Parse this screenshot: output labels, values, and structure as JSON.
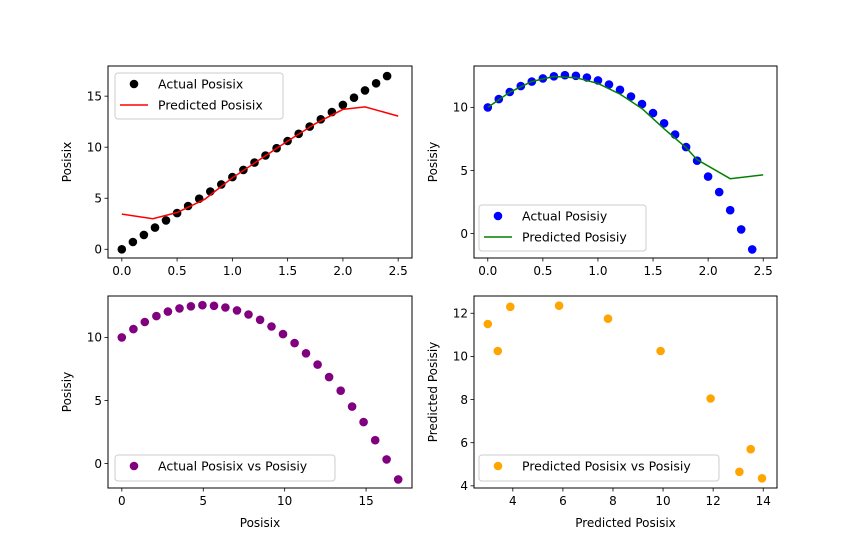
{
  "chart_data": [
    {
      "type": "scatter",
      "xlim": [
        -0.125,
        2.625
      ],
      "ylim": [
        -0.855,
        17.955
      ],
      "xticks": [
        0,
        0.5,
        1,
        1.5,
        2,
        2.5
      ],
      "xtick_labels": [
        "0.0",
        "0.5",
        "1.0",
        "1.5",
        "2.0",
        "2.5"
      ],
      "yticks": [
        0,
        5,
        10,
        15
      ],
      "ytick_labels": [
        "0",
        "5",
        "10",
        "15"
      ],
      "xlabel": "",
      "ylabel": "Posisix",
      "legend": "upper-left",
      "series": [
        {
          "name": "Actual Posisix",
          "kind": "scatter",
          "color": "#000000",
          "x": [
            0,
            0.1,
            0.2,
            0.3,
            0.4,
            0.5,
            0.6,
            0.7,
            0.8,
            0.9,
            1.0,
            1.1,
            1.2,
            1.3,
            1.4,
            1.5,
            1.6,
            1.7,
            1.8,
            1.9,
            2.0,
            2.1,
            2.2,
            2.3,
            2.4
          ],
          "y": [
            0,
            0.71,
            1.41,
            2.12,
            2.83,
            3.54,
            4.24,
            4.95,
            5.66,
            6.36,
            7.07,
            7.78,
            8.49,
            9.19,
            9.9,
            10.61,
            11.31,
            12.02,
            12.73,
            13.44,
            14.14,
            14.85,
            15.56,
            16.26,
            16.97
          ]
        },
        {
          "name": "Predicted Posisix",
          "kind": "line",
          "color": "#ff0000",
          "x": [
            0,
            0.28,
            0.5,
            0.75,
            1.0,
            1.25,
            1.5,
            1.75,
            2.0,
            2.2,
            2.5
          ],
          "y": [
            3.45,
            3.0,
            3.6,
            4.9,
            7.0,
            8.8,
            10.6,
            12.3,
            13.7,
            13.95,
            13.05
          ]
        }
      ]
    },
    {
      "type": "scatter",
      "xlim": [
        -0.125,
        2.625
      ],
      "ylim": [
        -1.94,
        13.28
      ],
      "xticks": [
        0,
        0.5,
        1,
        1.5,
        2,
        2.5
      ],
      "xtick_labels": [
        "0.0",
        "0.5",
        "1.0",
        "1.5",
        "2.0",
        "2.5"
      ],
      "yticks": [
        0,
        5,
        10
      ],
      "ytick_labels": [
        "0",
        "5",
        "10"
      ],
      "xlabel": "",
      "ylabel": "Posisiy",
      "legend": "lower-left",
      "series": [
        {
          "name": "Actual Posisiy",
          "kind": "scatter",
          "color": "#0000ff",
          "x": [
            0,
            0.1,
            0.2,
            0.3,
            0.4,
            0.5,
            0.6,
            0.7,
            0.8,
            0.9,
            1.0,
            1.1,
            1.2,
            1.3,
            1.4,
            1.5,
            1.6,
            1.7,
            1.8,
            1.9,
            2.0,
            2.1,
            2.2,
            2.3,
            2.4
          ],
          "y": [
            10,
            10.66,
            11.22,
            11.69,
            12.04,
            12.3,
            12.46,
            12.55,
            12.5,
            12.37,
            12.14,
            11.81,
            11.39,
            10.86,
            10.26,
            9.55,
            8.74,
            7.84,
            6.85,
            5.77,
            4.51,
            3.28,
            1.85,
            0.33,
            -1.26
          ]
        },
        {
          "name": "Predicted Posisiy",
          "kind": "line",
          "color": "#008000",
          "x": [
            0,
            0.2,
            0.4,
            0.6,
            0.8,
            1.0,
            1.2,
            1.4,
            1.6,
            1.8,
            1.9,
            2.2,
            2.5
          ],
          "y": [
            10.0,
            11.2,
            12.05,
            12.45,
            12.35,
            11.9,
            11.05,
            9.9,
            8.3,
            6.8,
            5.85,
            4.35,
            4.65
          ]
        }
      ]
    },
    {
      "type": "scatter",
      "xlim": [
        -0.85,
        17.82
      ],
      "ylim": [
        -1.94,
        13.28
      ],
      "xticks": [
        0,
        5,
        10,
        15
      ],
      "xtick_labels": [
        "0",
        "5",
        "10",
        "15"
      ],
      "yticks": [
        0,
        5,
        10
      ],
      "ytick_labels": [
        "0",
        "5",
        "10"
      ],
      "xlabel": "Posisix",
      "ylabel": "Posisiy",
      "legend": "lower-left",
      "series": [
        {
          "name": "Actual Posisix vs Posisiy",
          "kind": "scatter",
          "color": "#800080",
          "x": [
            0,
            0.71,
            1.41,
            2.12,
            2.83,
            3.54,
            4.24,
            4.95,
            5.66,
            6.36,
            7.07,
            7.78,
            8.49,
            9.19,
            9.9,
            10.61,
            11.31,
            12.02,
            12.73,
            13.44,
            14.14,
            14.85,
            15.56,
            16.26,
            16.97
          ],
          "y": [
            10,
            10.66,
            11.22,
            11.69,
            12.04,
            12.3,
            12.46,
            12.55,
            12.5,
            12.37,
            12.14,
            11.81,
            11.39,
            10.86,
            10.26,
            9.55,
            8.74,
            7.84,
            6.85,
            5.77,
            4.51,
            3.28,
            1.85,
            0.33,
            -1.26
          ]
        }
      ]
    },
    {
      "type": "scatter",
      "xlim": [
        2.45,
        14.55
      ],
      "ylim": [
        3.9,
        12.8
      ],
      "xticks": [
        4,
        6,
        8,
        10,
        12,
        14
      ],
      "xtick_labels": [
        "4",
        "6",
        "8",
        "10",
        "12",
        "14"
      ],
      "yticks": [
        4,
        6,
        8,
        10,
        12
      ],
      "ytick_labels": [
        "4",
        "6",
        "8",
        "10",
        "12"
      ],
      "xlabel": "Predicted Posisix",
      "ylabel": "Predicted Posisiy",
      "legend": "lower-left",
      "series": [
        {
          "name": "Predicted Posisix vs Posisiy",
          "kind": "scatter",
          "color": "#ffa500",
          "x": [
            3.0,
            3.4,
            3.9,
            5.85,
            7.8,
            9.9,
            11.9,
            13.05,
            13.5,
            13.95
          ],
          "y": [
            11.5,
            10.25,
            12.3,
            12.35,
            11.75,
            10.25,
            8.05,
            4.65,
            5.7,
            4.35
          ]
        }
      ]
    }
  ]
}
